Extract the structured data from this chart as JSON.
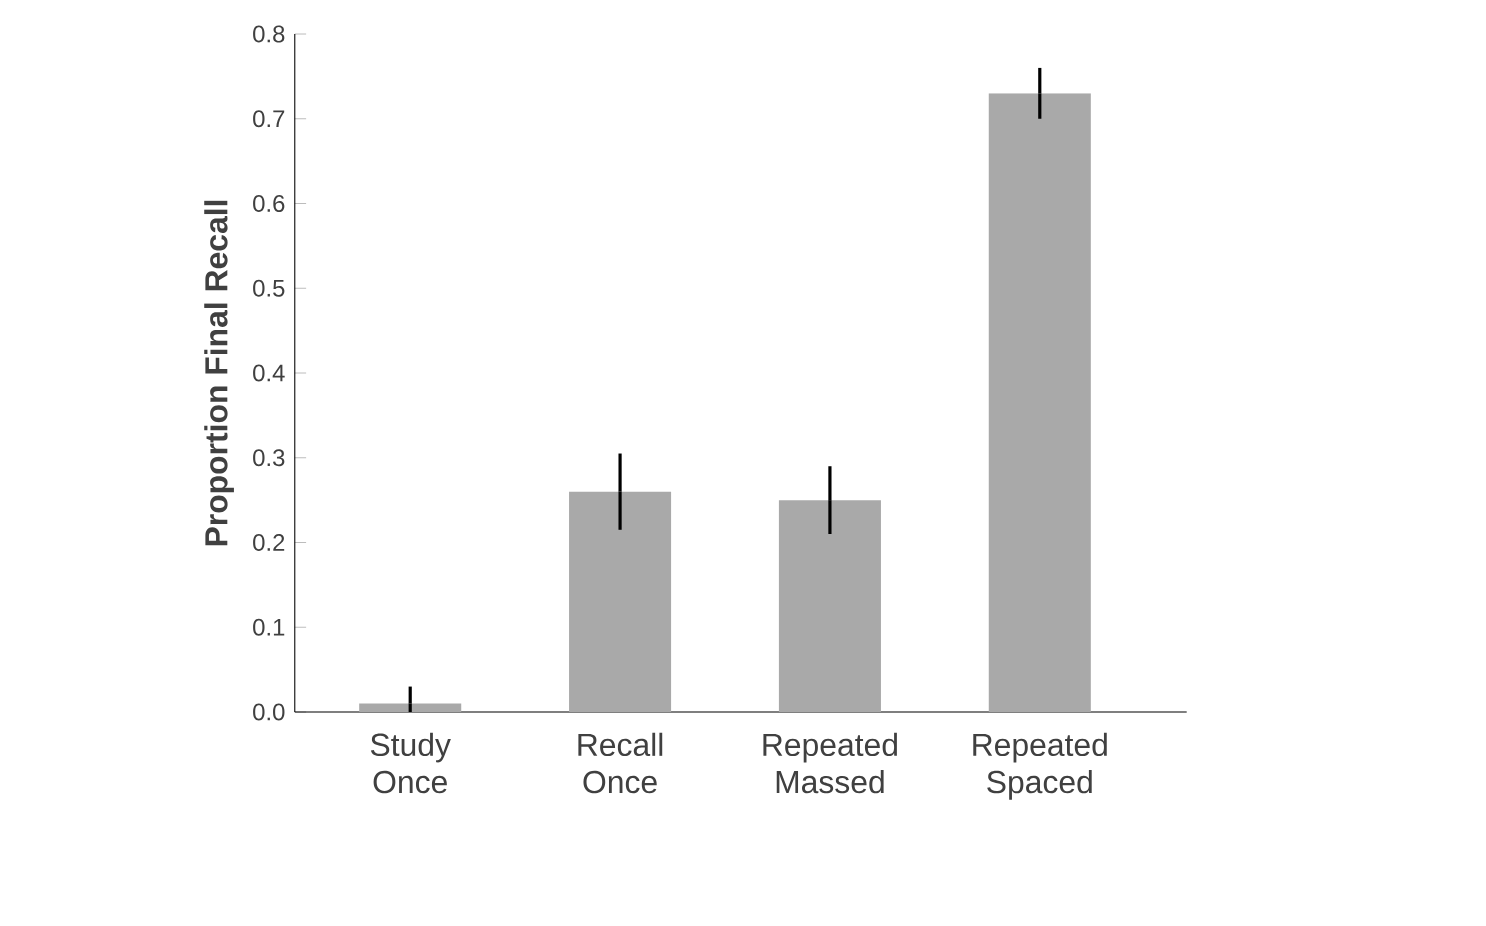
{
  "chart_data": {
    "type": "bar",
    "ylabel": "Proportion Final Recall",
    "categories": [
      "Study Once",
      "Recall Once",
      "Repeated Massed",
      "Repeated Spaced"
    ],
    "values": [
      0.01,
      0.26,
      0.25,
      0.73
    ],
    "errors": [
      0.02,
      0.045,
      0.04,
      0.03
    ],
    "color": "#a9a9a9",
    "ylim": [
      0,
      0.8
    ],
    "yticks": [
      {
        "value": 0,
        "label": "0.0"
      },
      0.1,
      0.2,
      0.3,
      0.4,
      0.5,
      0.6,
      0.7,
      0.8
    ],
    "grid": false
  }
}
